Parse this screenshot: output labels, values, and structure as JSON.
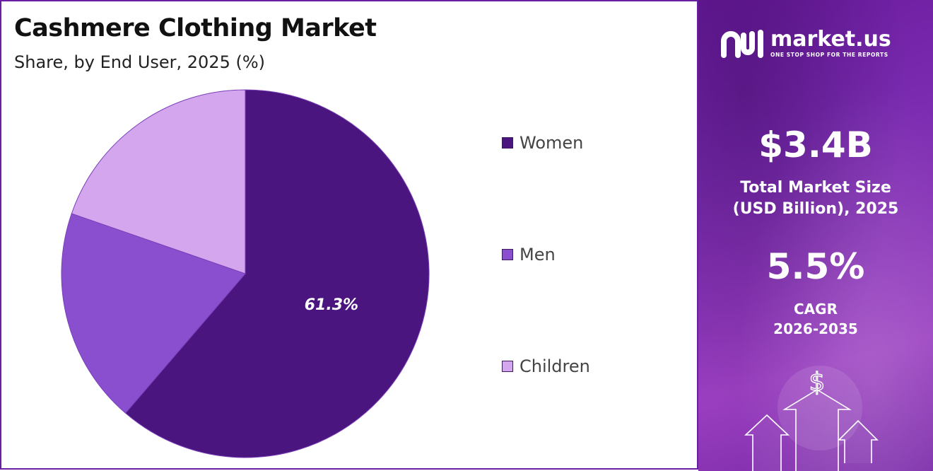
{
  "header": {
    "title": "Cashmere Clothing Market",
    "subtitle": "Share, by End User, 2025 (%)"
  },
  "chart_data": {
    "type": "pie",
    "title": "Cashmere Clothing Market",
    "subtitle": "Share, by End User, 2025 (%)",
    "categories": [
      "Women",
      "Men",
      "Children"
    ],
    "values": [
      61.3,
      19.0,
      19.7
    ],
    "colors": [
      "#4b1580",
      "#8a4fcf",
      "#d4a6ee"
    ],
    "data_labels": [
      "61.3%",
      "",
      ""
    ],
    "legend_position": "right"
  },
  "brand": {
    "name": "market.us",
    "tagline": "ONE STOP SHOP FOR THE REPORTS"
  },
  "stats": {
    "market_size_value": "$3.4B",
    "market_size_label_line1": "Total Market Size",
    "market_size_label_line2": "(USD Billion), 2025",
    "cagr_value": "5.5%",
    "cagr_label_line1": "CAGR",
    "cagr_label_line2": "2026-2035"
  },
  "icons": {
    "brand_logo": "market-us-logo-icon",
    "dollar": "dollar-icon",
    "arrows": "growth-arrows-icon"
  }
}
